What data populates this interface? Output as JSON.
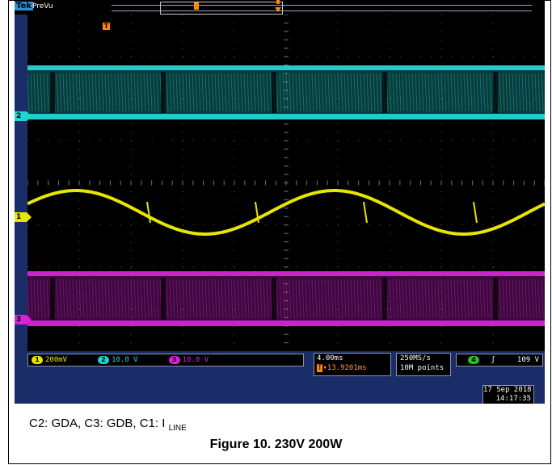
{
  "scope": {
    "brand": "Tek",
    "mode": "PreVu",
    "trigger_marker": "T",
    "record_position_marker": "B",
    "channel_markers": {
      "ch1": "1",
      "ch2": "2",
      "ch3": "3"
    },
    "channels": [
      {
        "number": "1",
        "scale": "200mV",
        "color": "#e6e600"
      },
      {
        "number": "2",
        "scale": "10.0 V",
        "color": "#22d3d3"
      },
      {
        "number": "3",
        "scale": "10.0 V",
        "color": "#d722d7"
      }
    ],
    "timebase": {
      "scale": "4.00ms",
      "delay_icon": "T",
      "delay": "▾13.9201ms"
    },
    "acquisition": {
      "sample_rate": "250MS/s",
      "record_length": "10M points"
    },
    "trigger": {
      "source": "4",
      "slope_icon": "rising-edge-icon",
      "level": "109 V"
    },
    "date": "17 Sep  2018",
    "time": "14:17:35"
  },
  "caption": {
    "text": "C2: GDA, C3: GDB, C1: I",
    "subscript": "LINE"
  },
  "figure_title": "Figure 10. 230V 200W",
  "colors": {
    "ch1": "#e6e600",
    "ch2": "#22d3d3",
    "ch3": "#d722d7",
    "ch4": "#22c322",
    "trigger": "#ff8c00",
    "bezel": "#1b2d68"
  }
}
